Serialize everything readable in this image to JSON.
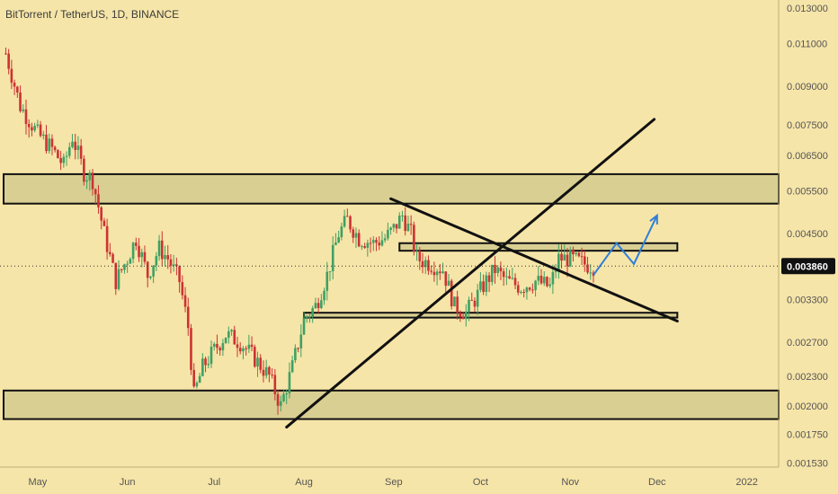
{
  "header": {
    "title": "BitTorrent / TetherUS, 1D, BINANCE"
  },
  "colors": {
    "background": "#f6e5a8",
    "up": "#3fa064",
    "down": "#cc3333",
    "zone_fill": "#d9cf92",
    "line": "#111111",
    "arrow": "#2f7fd8",
    "axis_text": "#555555",
    "price_tag_bg": "#111111",
    "price_tag_text": "#ffffff"
  },
  "chart_data": {
    "type": "candlestick",
    "scale": "log",
    "ylim": [
      0.0015,
      0.0135
    ],
    "y_ticks": [
      "0.013000",
      "0.011000",
      "0.009000",
      "0.007500",
      "0.006500",
      "0.005500",
      "0.004500",
      "0.003860",
      "0.003300",
      "0.002700",
      "0.002300",
      "0.002000",
      "0.001750",
      "0.001530"
    ],
    "x_ticks": [
      "May",
      "Jun",
      "Jul",
      "Aug",
      "Sep",
      "Oct",
      "Nov",
      "Dec",
      "2022"
    ],
    "x_range": [
      "2021-04-18",
      "2022-01-12"
    ],
    "last_price": 0.00386,
    "last_price_label": "0.003860",
    "candle_path": [
      [
        "2021-04-20",
        0.0105
      ],
      [
        "2021-04-25",
        0.0082
      ],
      [
        "2021-05-01",
        0.0072
      ],
      [
        "2021-05-06",
        0.0067
      ],
      [
        "2021-05-10",
        0.0062
      ],
      [
        "2021-05-13",
        0.0071
      ],
      [
        "2021-05-17",
        0.006
      ],
      [
        "2021-05-20",
        0.0058
      ],
      [
        "2021-05-24",
        0.0045
      ],
      [
        "2021-05-28",
        0.0036
      ],
      [
        "2021-06-01",
        0.004
      ],
      [
        "2021-06-04",
        0.0044
      ],
      [
        "2021-06-08",
        0.0037
      ],
      [
        "2021-06-12",
        0.0042
      ],
      [
        "2021-06-15",
        0.004
      ],
      [
        "2021-06-19",
        0.0036
      ],
      [
        "2021-06-22",
        0.0029
      ],
      [
        "2021-06-24",
        0.0021
      ],
      [
        "2021-06-27",
        0.0024
      ],
      [
        "2021-07-01",
        0.0026
      ],
      [
        "2021-07-05",
        0.0028
      ],
      [
        "2021-07-10",
        0.0027
      ],
      [
        "2021-07-15",
        0.0025
      ],
      [
        "2021-07-20",
        0.0023
      ],
      [
        "2021-07-24",
        0.002
      ],
      [
        "2021-07-28",
        0.0024
      ],
      [
        "2021-08-01",
        0.003
      ],
      [
        "2021-08-05",
        0.0032
      ],
      [
        "2021-08-09",
        0.0037
      ],
      [
        "2021-08-13",
        0.0045
      ],
      [
        "2021-08-16",
        0.0048
      ],
      [
        "2021-08-20",
        0.0044
      ],
      [
        "2021-08-25",
        0.0043
      ],
      [
        "2021-08-29",
        0.0044
      ],
      [
        "2021-09-01",
        0.0046
      ],
      [
        "2021-09-04",
        0.0049
      ],
      [
        "2021-09-07",
        0.0045
      ],
      [
        "2021-09-09",
        0.004
      ],
      [
        "2021-09-14",
        0.0039
      ],
      [
        "2021-09-18",
        0.0038
      ],
      [
        "2021-09-22",
        0.0032
      ],
      [
        "2021-09-26",
        0.0031
      ],
      [
        "2021-09-29",
        0.0033
      ],
      [
        "2021-10-03",
        0.0036
      ],
      [
        "2021-10-06",
        0.0038
      ],
      [
        "2021-10-10",
        0.0036
      ],
      [
        "2021-10-15",
        0.0035
      ],
      [
        "2021-10-20",
        0.0036
      ],
      [
        "2021-10-25",
        0.0035
      ],
      [
        "2021-10-28",
        0.004
      ],
      [
        "2021-11-01",
        0.004
      ],
      [
        "2021-11-06",
        0.0039
      ],
      [
        "2021-11-09",
        0.00386
      ]
    ],
    "zones": [
      {
        "from": "2021-04-18",
        "to": "2022-01-12",
        "low": 0.00518,
        "high": 0.00595
      },
      {
        "from": "2021-09-03",
        "to": "2021-12-08",
        "low": 0.00415,
        "high": 0.0043
      },
      {
        "from": "2021-08-01",
        "to": "2021-12-08",
        "low": 0.00303,
        "high": 0.0031
      },
      {
        "from": "2021-04-18",
        "to": "2022-01-12",
        "low": 0.00188,
        "high": 0.00215
      }
    ],
    "trendlines": [
      {
        "from": [
          "2021-07-26",
          0.00181
        ],
        "to": [
          "2021-11-30",
          0.0077
        ]
      },
      {
        "from": [
          "2021-08-31",
          0.0053
        ],
        "to": [
          "2021-12-08",
          0.00298
        ]
      }
    ],
    "projection": [
      [
        "2021-11-09",
        0.0037
      ],
      [
        "2021-11-17",
        0.0043
      ],
      [
        "2021-11-23",
        0.0039
      ],
      [
        "2021-12-01",
        0.0049
      ]
    ]
  }
}
